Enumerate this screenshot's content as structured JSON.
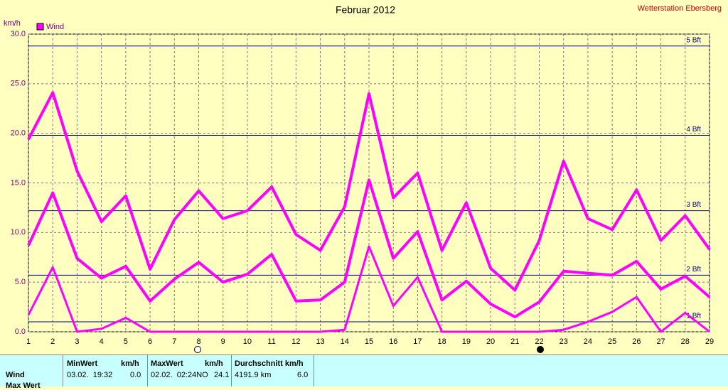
{
  "chart_data": {
    "type": "line",
    "title": "Februar 2012",
    "station": "Wetterstation Ebersberg",
    "y_label": "km/h",
    "x": [
      1,
      2,
      3,
      4,
      5,
      6,
      7,
      8,
      9,
      10,
      11,
      12,
      13,
      14,
      15,
      16,
      17,
      18,
      19,
      20,
      21,
      22,
      23,
      24,
      25,
      26,
      27,
      28,
      29
    ],
    "series": [
      {
        "name": "Wind",
        "color": "#ff00ff",
        "values": [
          19.4,
          24.1,
          16.2,
          11.1,
          13.7,
          6.3,
          11.3,
          14.2,
          11.4,
          12.2,
          14.6,
          9.8,
          8.2,
          12.6,
          24.0,
          13.5,
          16.0,
          8.2,
          13.0,
          6.4,
          4.2,
          9.2,
          17.2,
          11.4,
          10.3,
          14.3,
          9.2,
          11.7,
          8.3
        ]
      },
      {
        "color": "#ff00ff",
        "values": [
          8.7,
          14.0,
          7.4,
          5.4,
          6.6,
          3.1,
          5.3,
          7.0,
          5.0,
          5.8,
          7.8,
          3.1,
          3.2,
          5.0,
          15.3,
          7.4,
          10.1,
          3.2,
          5.1,
          2.8,
          1.5,
          3.0,
          6.1,
          5.9,
          5.7,
          7.1,
          4.3,
          5.6,
          3.5
        ]
      },
      {
        "color": "#ff00ff",
        "values": [
          1.7,
          6.5,
          0,
          0.3,
          1.4,
          0,
          0,
          0,
          0,
          0,
          0,
          0,
          0,
          0.2,
          8.6,
          2.6,
          5.5,
          0,
          0,
          0,
          0,
          0,
          0.2,
          1.0,
          2.0,
          3.5,
          0,
          1.9,
          0
        ]
      }
    ],
    "xlim": [
      1,
      29
    ],
    "xticks": [
      1,
      2,
      3,
      4,
      5,
      6,
      7,
      8,
      9,
      10,
      11,
      12,
      13,
      14,
      15,
      16,
      17,
      18,
      19,
      20,
      21,
      22,
      23,
      24,
      25,
      26,
      27,
      28,
      29
    ],
    "ylim": [
      0,
      30
    ],
    "yticks": [
      {
        "value": 0,
        "label": "0.0"
      },
      {
        "value": 5,
        "label": "5.0"
      },
      {
        "value": 10,
        "label": "10.0"
      },
      {
        "value": 15,
        "label": "15.0"
      },
      {
        "value": 20,
        "label": "20.0"
      },
      {
        "value": 25,
        "label": "25.0"
      },
      {
        "value": 30,
        "label": "30.0"
      }
    ],
    "grid": true,
    "bft_lines": [
      {
        "value": 1,
        "label": "1 Bft"
      },
      {
        "value": 5.7,
        "label": "2 Bft"
      },
      {
        "value": 12.2,
        "label": "3 Bft"
      },
      {
        "value": 19.8,
        "label": "4 Bft"
      },
      {
        "value": 28.8,
        "label": "5 Bft"
      }
    ]
  },
  "table": {
    "headers": [
      "MinWert",
      "km/h",
      "MaxWert",
      "km/h",
      "Durchschnitt km/h"
    ],
    "rows": [
      [
        "Wind",
        "03.02.  19:32",
        "0.0",
        "02.02.  02:24NO",
        "24.1",
        "4191.9 km",
        "6.0"
      ],
      [
        "Max Wert"
      ]
    ]
  }
}
